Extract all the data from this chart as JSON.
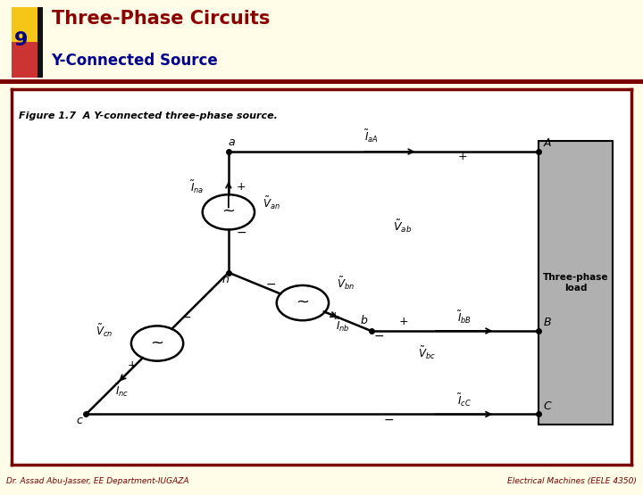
{
  "title1": "Three-Phase Circuits",
  "title2": "Y-Connected Source",
  "slide_number": "9",
  "footer_left": "Dr. Assad Abu-Jasser, EE Department-IUGAZA",
  "footer_right": "Electrical Machines (EELE 4350)",
  "figure_caption": "Figure 1.7  A Y-connected three-phase source.",
  "bg_color": "#FFFDE8",
  "dark_red": "#7B0000",
  "title_color": "#8B0000",
  "subtitle_color": "#00008B",
  "circuit_bg": "#FFFFFF",
  "load_box_color": "#B0B0B0"
}
